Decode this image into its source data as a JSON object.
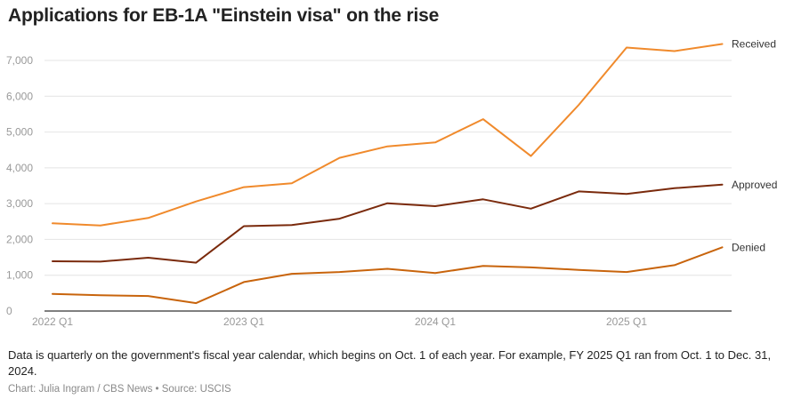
{
  "header": {
    "title": "Applications for EB-1A \"Einstein visa\" on the rise"
  },
  "footer": {
    "note": "Data is quarterly on the government's fiscal year calendar, which begins on Oct. 1 of each year. For example, FY 2025 Q1 ran from Oct. 1 to Dec. 31, 2024.",
    "credit": "Chart: Julia Ingram / CBS News • Source: USCIS"
  },
  "chart_data": {
    "type": "line",
    "title": "Applications for EB-1A \"Einstein visa\" on the rise",
    "xlabel": "",
    "ylabel": "",
    "x": [
      "2022 Q1",
      "2022 Q2",
      "2022 Q3",
      "2022 Q4",
      "2023 Q1",
      "2023 Q2",
      "2023 Q3",
      "2023 Q4",
      "2024 Q1",
      "2024 Q2",
      "2024 Q3",
      "2024 Q4",
      "2025 Q1",
      "2025 Q2",
      "2025 Q3"
    ],
    "x_tick_labels": [
      "2022 Q1",
      "2023 Q1",
      "2024 Q1",
      "2025 Q1"
    ],
    "y_ticks": [
      0,
      1000,
      2000,
      3000,
      4000,
      5000,
      6000,
      7000
    ],
    "y_tick_labels": [
      "0",
      "1,000",
      "2,000",
      "3,000",
      "4,000",
      "5,000",
      "6,000",
      "7,000"
    ],
    "ylim": [
      0,
      7500
    ],
    "grid": true,
    "legend": "direct labels at right end of lines",
    "series": [
      {
        "name": "Received",
        "color": "#f08a2c",
        "values": [
          2450,
          2390,
          2600,
          3060,
          3460,
          3570,
          4280,
          4600,
          4710,
          5360,
          4330,
          5760,
          7360,
          7260,
          7460
        ]
      },
      {
        "name": "Approved",
        "color": "#7a2a0c",
        "values": [
          1390,
          1380,
          1490,
          1350,
          2370,
          2400,
          2580,
          3010,
          2930,
          3120,
          2860,
          3340,
          3270,
          3430,
          3530
        ]
      },
      {
        "name": "Denied",
        "color": "#c8640c",
        "values": [
          480,
          440,
          420,
          220,
          810,
          1040,
          1090,
          1180,
          1060,
          1260,
          1220,
          1150,
          1090,
          1280,
          1780
        ]
      }
    ]
  }
}
